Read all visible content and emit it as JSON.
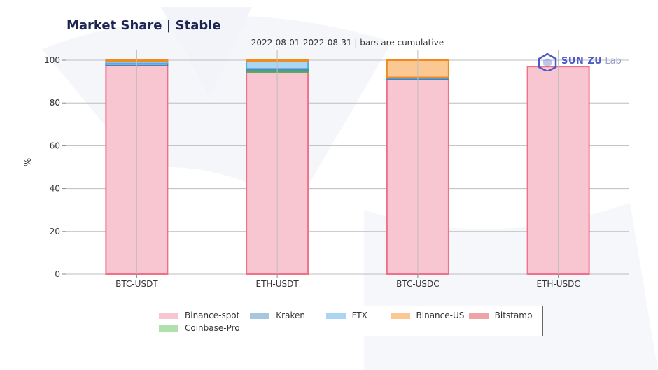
{
  "chart_data": {
    "type": "bar",
    "stacked": true,
    "title": "Market Share | Stable",
    "subtitle": "2022-08-01-2022-08-31 | bars are cumulative",
    "xlabel": "",
    "ylabel": "%",
    "ylim": [
      0,
      100
    ],
    "yticks": [
      0,
      20,
      40,
      60,
      80,
      100
    ],
    "grid": true,
    "legend_position": "bottom",
    "categories": [
      "BTC-USDT",
      "ETH-USDT",
      "BTC-USDC",
      "ETH-USDC"
    ],
    "series": [
      {
        "name": "Binance-spot",
        "color": "#f8c6d0",
        "edge": "#f0708a",
        "values": [
          97.5,
          94.5,
          91,
          97
        ]
      },
      {
        "name": "Kraken",
        "color": "#a8c6e0",
        "edge": "#4a82b8",
        "values": [
          1,
          0.5,
          0.6,
          0
        ]
      },
      {
        "name": "FTX",
        "color": "#aad6f3",
        "edge": "#5aa8e6",
        "values": [
          1,
          3.5,
          0.4,
          0
        ]
      },
      {
        "name": "Binance-US",
        "color": "#fbc894",
        "edge": "#f08c1e",
        "values": [
          0.5,
          0.5,
          8,
          0
        ]
      },
      {
        "name": "Bitstamp",
        "color": "#eea3a6",
        "edge": "#e06a72",
        "values": [
          0,
          0,
          0,
          0
        ]
      },
      {
        "name": "Coinbase-Pro",
        "color": "#b2e0ac",
        "edge": "#4cae4c",
        "values": [
          0,
          1,
          0,
          0
        ]
      }
    ],
    "stack_order": [
      "Binance-spot",
      "Coinbase-Pro",
      "Kraken",
      "FTX",
      "Binance-US",
      "Bitstamp"
    ]
  },
  "logo": {
    "brand": "SUN ZU",
    "suffix": "Lab"
  },
  "colors": {
    "title": "#1d2551",
    "grid": "#bdbdbd",
    "axis_text": "#333333"
  }
}
